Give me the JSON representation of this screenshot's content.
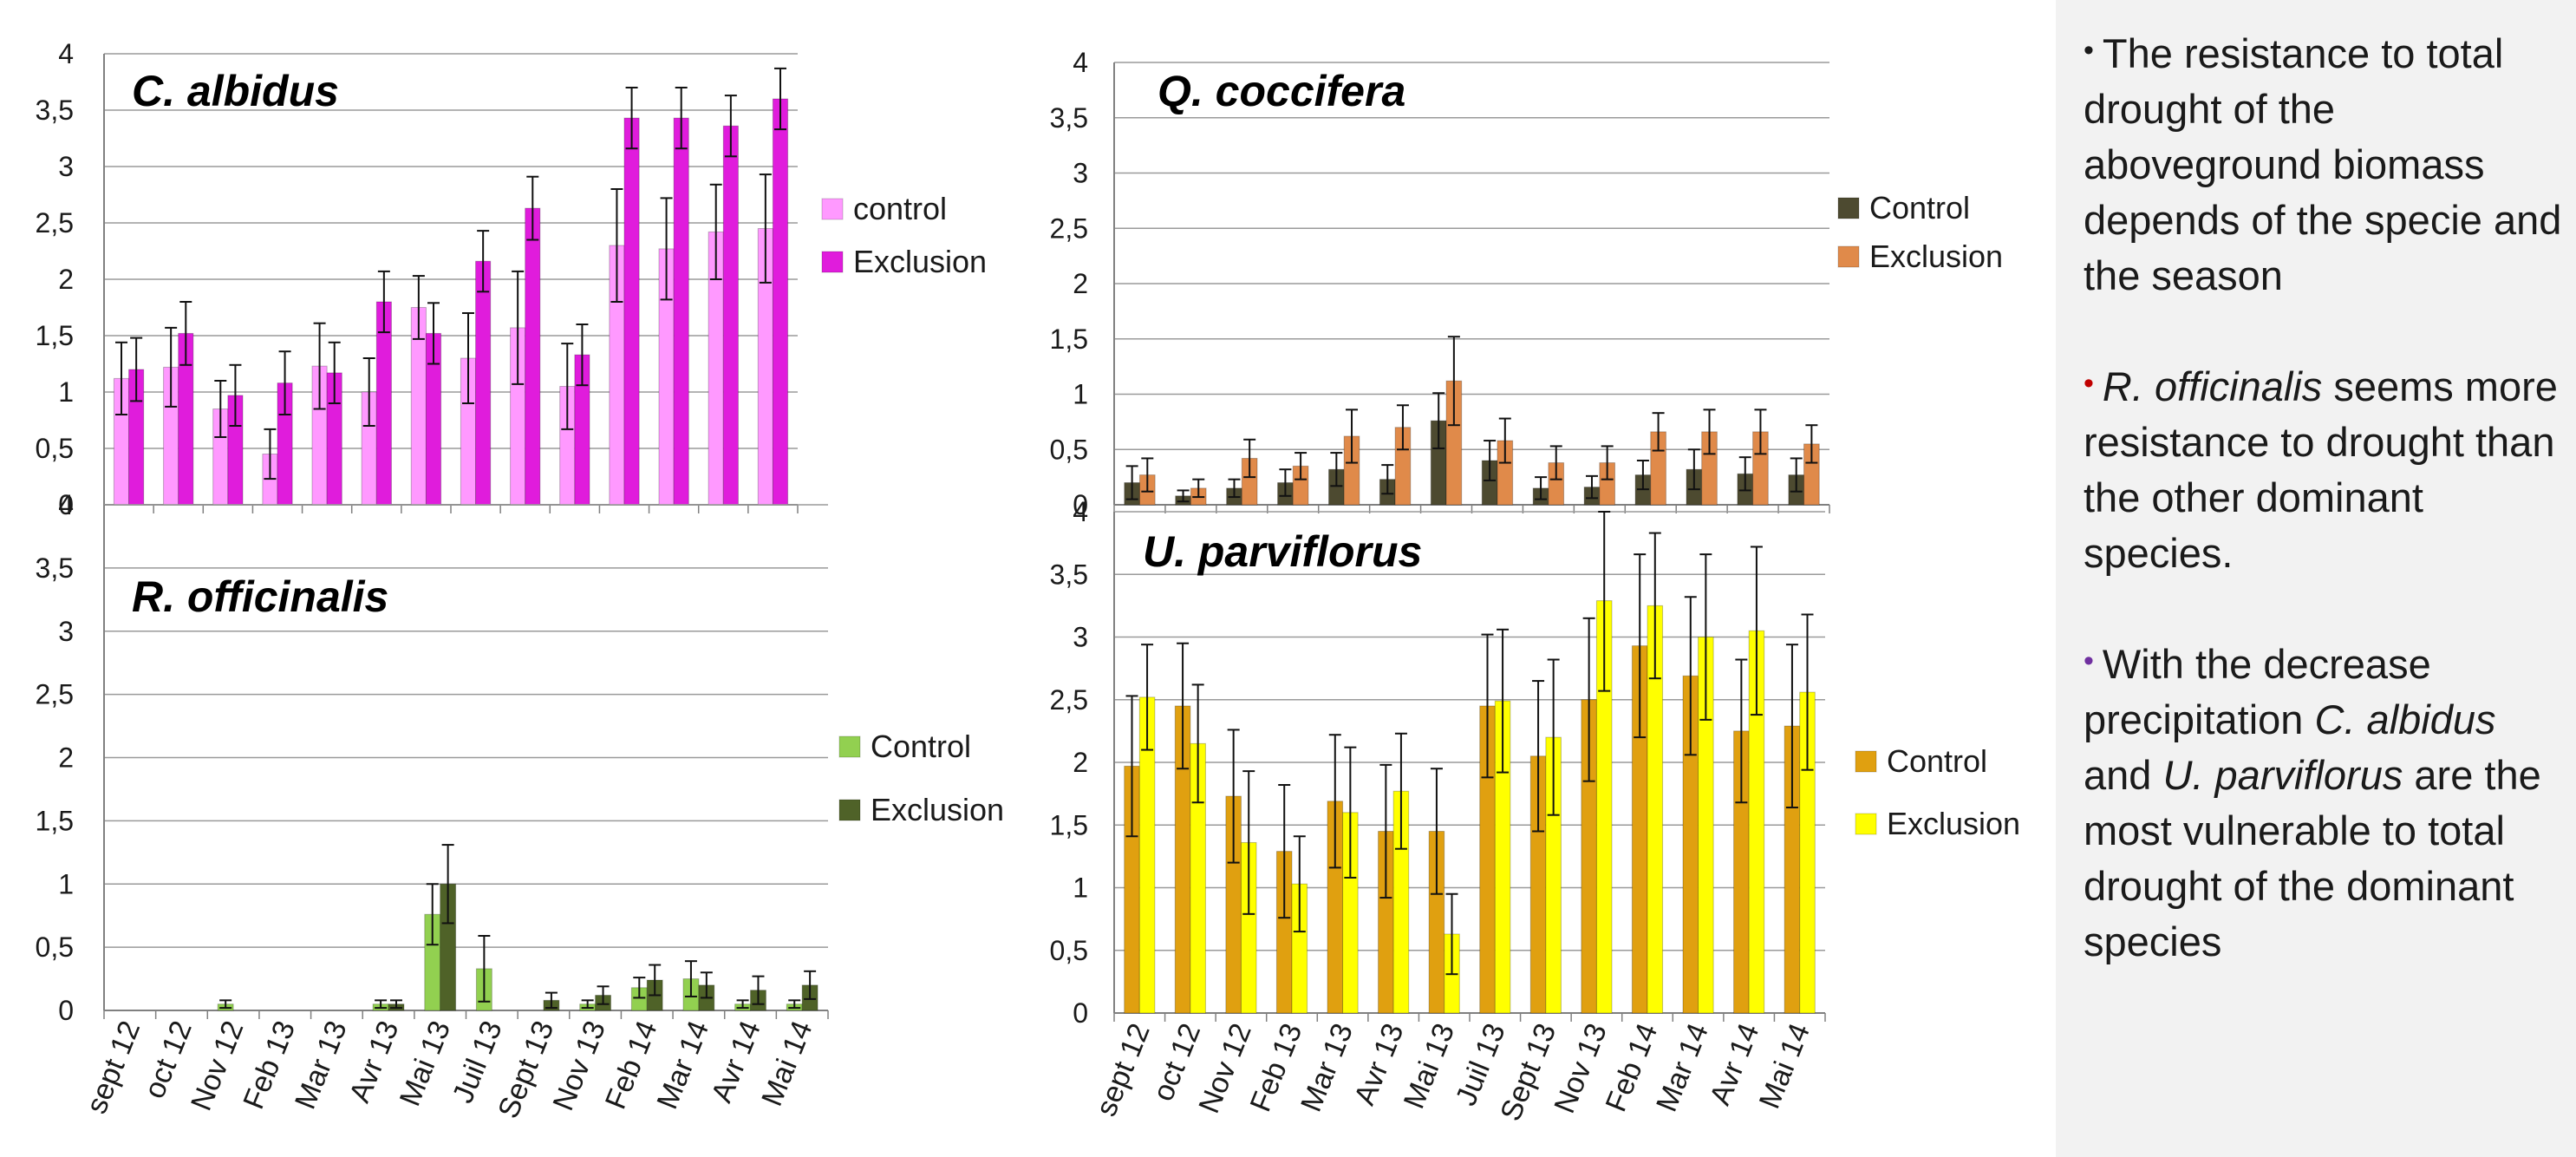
{
  "categories": [
    "sept 12",
    "oct 12",
    "Nov 12",
    "Feb 13",
    "Mar 13",
    "Avr 13",
    "Mai 13",
    "Juil 13",
    "Sept 13",
    "Nov 13",
    "Feb 14",
    "Mar 14",
    "Avr 14",
    "Mai 14"
  ],
  "chart_data": [
    {
      "type": "bar",
      "title": "C. albidus",
      "categories": [
        "sept 12",
        "oct 12",
        "Nov 12",
        "Feb 13",
        "Mar 13",
        "Avr 13",
        "Mai 13",
        "Juil 13",
        "Sept 13",
        "Nov 13",
        "Feb 14",
        "Mar 14",
        "Avr 14",
        "Mai 14"
      ],
      "ylim": [
        0,
        4
      ],
      "yticks": [
        "0",
        "0,5",
        "1",
        "1,5",
        "2",
        "2,5",
        "3",
        "3,5",
        "4"
      ],
      "legend_position": "right",
      "series": [
        {
          "name": "control",
          "color": "#ff99ff",
          "values": [
            1.12,
            1.22,
            0.85,
            0.45,
            1.23,
            1.0,
            1.75,
            1.3,
            1.57,
            1.05,
            2.3,
            2.27,
            2.42,
            2.45
          ],
          "errors": [
            0.32,
            0.35,
            0.25,
            0.22,
            0.38,
            0.3,
            0.28,
            0.4,
            0.5,
            0.38,
            0.5,
            0.45,
            0.42,
            0.48
          ]
        },
        {
          "name": "Exclusion",
          "color": "#e01cdc",
          "values": [
            1.2,
            1.52,
            0.97,
            1.08,
            1.17,
            1.8,
            1.52,
            2.16,
            2.63,
            1.33,
            3.43,
            3.43,
            3.36,
            3.6
          ],
          "errors": [
            0.28,
            0.28,
            0.27,
            0.28,
            0.27,
            0.27,
            0.27,
            0.27,
            0.28,
            0.27,
            0.27,
            0.27,
            0.27,
            0.27
          ]
        }
      ]
    },
    {
      "type": "bar",
      "title": "Q. coccifera",
      "categories": [
        "sept 12",
        "oct 12",
        "Nov 12",
        "Feb 13",
        "Mar 13",
        "Avr 13",
        "Mai 13",
        "Juil 13",
        "Sept 13",
        "Nov 13",
        "Feb 14",
        "Mar 14",
        "Avr 14",
        "Mai 14"
      ],
      "ylim": [
        0,
        4
      ],
      "yticks": [
        "0",
        "0,5",
        "1",
        "1,5",
        "2",
        "2,5",
        "3",
        "3,5",
        "4"
      ],
      "legend_position": "right",
      "series": [
        {
          "name": "Control",
          "color": "#4d4a30",
          "values": [
            0.2,
            0.08,
            0.15,
            0.2,
            0.32,
            0.23,
            0.76,
            0.4,
            0.15,
            0.16,
            0.27,
            0.32,
            0.28,
            0.27
          ],
          "errors": [
            0.15,
            0.05,
            0.08,
            0.12,
            0.15,
            0.13,
            0.25,
            0.18,
            0.1,
            0.1,
            0.13,
            0.18,
            0.15,
            0.15
          ]
        },
        {
          "name": "Exclusion",
          "color": "#e08a4a",
          "values": [
            0.27,
            0.15,
            0.42,
            0.35,
            0.62,
            0.7,
            1.12,
            0.58,
            0.38,
            0.38,
            0.66,
            0.66,
            0.66,
            0.55
          ],
          "errors": [
            0.15,
            0.08,
            0.17,
            0.12,
            0.24,
            0.2,
            0.4,
            0.2,
            0.15,
            0.15,
            0.17,
            0.2,
            0.2,
            0.17
          ]
        }
      ]
    },
    {
      "type": "bar",
      "title": "R. officinalis",
      "categories": [
        "sept 12",
        "oct 12",
        "Nov 12",
        "Feb 13",
        "Mar 13",
        "Avr 13",
        "Mai 13",
        "Juil 13",
        "Sept 13",
        "Nov 13",
        "Feb 14",
        "Mar 14",
        "Avr 14",
        "Mai 14"
      ],
      "ylim": [
        0,
        4
      ],
      "yticks": [
        "0",
        "0,5",
        "1",
        "1,5",
        "2",
        "2,5",
        "3",
        "3,5",
        "4"
      ],
      "legend_position": "right",
      "series": [
        {
          "name": "Control",
          "color": "#92d050",
          "values": [
            0,
            0,
            0.05,
            0,
            0,
            0.05,
            0.76,
            0.33,
            0,
            0.05,
            0.18,
            0.25,
            0.05,
            0.05
          ],
          "errors": [
            0,
            0,
            0.03,
            0,
            0,
            0.03,
            0.24,
            0.26,
            0,
            0.03,
            0.08,
            0.14,
            0.03,
            0.03
          ]
        },
        {
          "name": "Exclusion",
          "color": "#4f6228",
          "values": [
            0,
            0,
            0,
            0,
            0,
            0.05,
            1.0,
            0,
            0.08,
            0.12,
            0.24,
            0.2,
            0.16,
            0.2
          ],
          "errors": [
            0,
            0,
            0,
            0,
            0,
            0.03,
            0.31,
            0,
            0.06,
            0.07,
            0.12,
            0.1,
            0.11,
            0.11
          ]
        }
      ]
    },
    {
      "type": "bar",
      "title": "U. parviflorus",
      "categories": [
        "sept 12",
        "oct 12",
        "Nov 12",
        "Feb 13",
        "Mar 13",
        "Avr 13",
        "Mai 13",
        "Juil 13",
        "Sept 13",
        "Nov 13",
        "Feb 14",
        "Mar 14",
        "Avr 14",
        "Mai 14"
      ],
      "ylim": [
        0,
        4
      ],
      "yticks": [
        "0",
        "0,5",
        "1",
        "1,5",
        "2",
        "2,5",
        "3",
        "3,5",
        "4"
      ],
      "legend_position": "right",
      "series": [
        {
          "name": "Control",
          "color": "#e0a010",
          "values": [
            1.97,
            2.45,
            1.73,
            1.29,
            1.69,
            1.45,
            1.45,
            2.45,
            2.05,
            2.5,
            2.93,
            2.69,
            2.25,
            2.29
          ],
          "errors": [
            0.56,
            0.5,
            0.53,
            0.53,
            0.53,
            0.53,
            0.5,
            0.57,
            0.6,
            0.65,
            0.73,
            0.63,
            0.57,
            0.65
          ]
        },
        {
          "name": "Exclusion",
          "color": "#ffff00",
          "values": [
            2.52,
            2.15,
            1.36,
            1.03,
            1.6,
            1.77,
            0.63,
            2.49,
            2.2,
            3.29,
            3.25,
            3.0,
            3.05,
            2.56
          ],
          "errors": [
            0.42,
            0.47,
            0.57,
            0.38,
            0.52,
            0.46,
            0.32,
            0.57,
            0.62,
            0.72,
            0.58,
            0.66,
            0.67,
            0.62
          ]
        }
      ]
    }
  ],
  "bullets": [
    {
      "dot": "•",
      "dot_color": "#1a1a1a",
      "text": "The resistance to total drought of the aboveground biomass depends of the specie and the season"
    },
    {
      "dot": "•",
      "dot_color": "#c00000",
      "italic_lead": "R. officinalis",
      "text": " seems more resistance to drought than the other dominant species."
    },
    {
      "dot": "•",
      "dot_color": "#7030a0",
      "text_1": "With the decrease precipitation ",
      "italic_1": "C. albidus",
      "text_2": " and ",
      "italic_2": "U. parviflorus",
      "text_3": " are the most vulnerable to total drought of the dominant species"
    }
  ]
}
